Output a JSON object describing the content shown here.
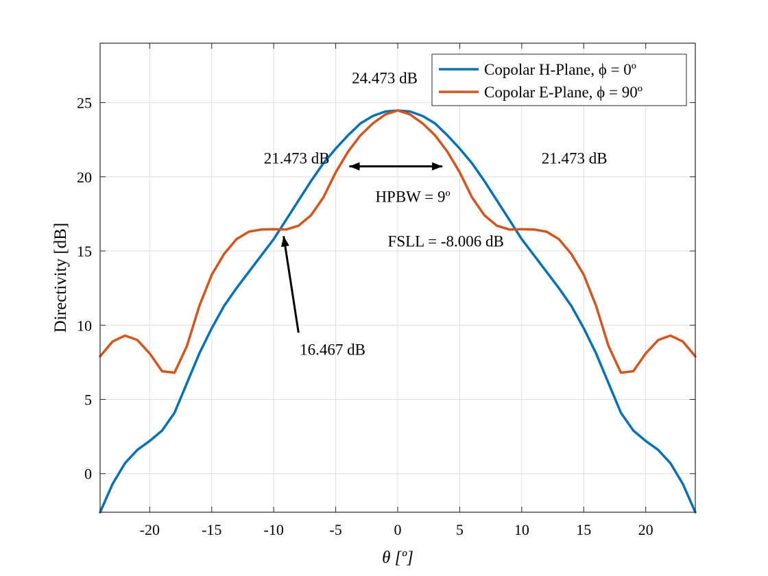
{
  "chart_data": {
    "type": "line",
    "xlabel": "θ [º]",
    "ylabel": "Directivity [dB]",
    "xlim": [
      -24,
      24
    ],
    "ylim": [
      -2.6,
      29
    ],
    "xticks": [
      -20,
      -15,
      -10,
      -5,
      0,
      5,
      10,
      15,
      20
    ],
    "yticks": [
      0,
      5,
      10,
      15,
      20,
      25
    ],
    "grid": true,
    "legend_position": "top-right",
    "series": [
      {
        "name": "Copolar H-Plane, ϕ = 0º",
        "color": "#0072BD",
        "x": [
          -24,
          -23,
          -22,
          -21,
          -20,
          -19,
          -18,
          -17,
          -16,
          -15,
          -14,
          -13,
          -12,
          -11,
          -10,
          -9,
          -8,
          -7,
          -6,
          -5,
          -4,
          -3,
          -2,
          -1,
          0,
          1,
          2,
          3,
          4,
          5,
          6,
          7,
          8,
          9,
          10,
          11,
          12,
          13,
          14,
          15,
          16,
          17,
          18,
          19,
          20,
          21,
          22,
          23,
          24
        ],
        "y": [
          -2.6,
          -0.7,
          0.7,
          1.6,
          2.2,
          2.9,
          4.1,
          6.1,
          8.1,
          9.8,
          11.3,
          12.5,
          13.6,
          14.7,
          15.8,
          17.1,
          18.4,
          19.7,
          20.9,
          21.9,
          22.8,
          23.6,
          24.1,
          24.4,
          24.47,
          24.4,
          24.1,
          23.6,
          22.8,
          21.9,
          20.9,
          19.7,
          18.4,
          17.1,
          15.8,
          14.7,
          13.6,
          12.5,
          11.3,
          9.8,
          8.1,
          6.1,
          4.1,
          2.9,
          2.2,
          1.6,
          0.7,
          -0.7,
          -2.6
        ]
      },
      {
        "name": "Copolar E-Plane, ϕ = 90º",
        "color": "#D95319",
        "x": [
          -24,
          -23,
          -22,
          -21,
          -20,
          -19,
          -18,
          -17,
          -16,
          -15,
          -14,
          -13,
          -12,
          -11,
          -10,
          -9,
          -8,
          -7,
          -6,
          -5,
          -4,
          -3,
          -2,
          -1,
          0,
          1,
          2,
          3,
          4,
          5,
          6,
          7,
          8,
          9,
          10,
          11,
          12,
          13,
          14,
          15,
          16,
          17,
          18,
          19,
          20,
          21,
          22,
          23,
          24
        ],
        "y": [
          7.9,
          8.9,
          9.3,
          9.0,
          8.1,
          6.9,
          6.8,
          8.6,
          11.3,
          13.4,
          14.8,
          15.8,
          16.3,
          16.45,
          16.47,
          16.45,
          16.7,
          17.4,
          18.6,
          20.3,
          21.7,
          22.8,
          23.6,
          24.2,
          24.47,
          24.2,
          23.6,
          22.8,
          21.7,
          20.3,
          18.6,
          17.4,
          16.7,
          16.45,
          16.47,
          16.45,
          16.3,
          15.8,
          14.8,
          13.4,
          11.3,
          8.6,
          6.8,
          6.9,
          8.1,
          9.0,
          9.3,
          8.9,
          7.9
        ]
      }
    ],
    "annotations": [
      {
        "text": "24.473 dB",
        "x": -3.7,
        "y": 26.3
      },
      {
        "text": "21.473 dB",
        "x": -10.8,
        "y": 20.9
      },
      {
        "text": "21.473 dB",
        "x": 11.6,
        "y": 20.9
      },
      {
        "text": "HPBW = 9º",
        "x": -1.8,
        "y": 18.3
      },
      {
        "text": "FSLL = -8.006 dB",
        "x": -0.8,
        "y": 15.3
      },
      {
        "text": "16.467 dB",
        "x": -7.9,
        "y": 8.0
      }
    ],
    "arrows": [
      {
        "type": "double",
        "from": [
          -3.9,
          20.7
        ],
        "to": [
          3.6,
          20.7
        ]
      },
      {
        "type": "single",
        "from": [
          -8.0,
          9.5
        ],
        "to": [
          -9.2,
          16.0
        ]
      }
    ]
  }
}
